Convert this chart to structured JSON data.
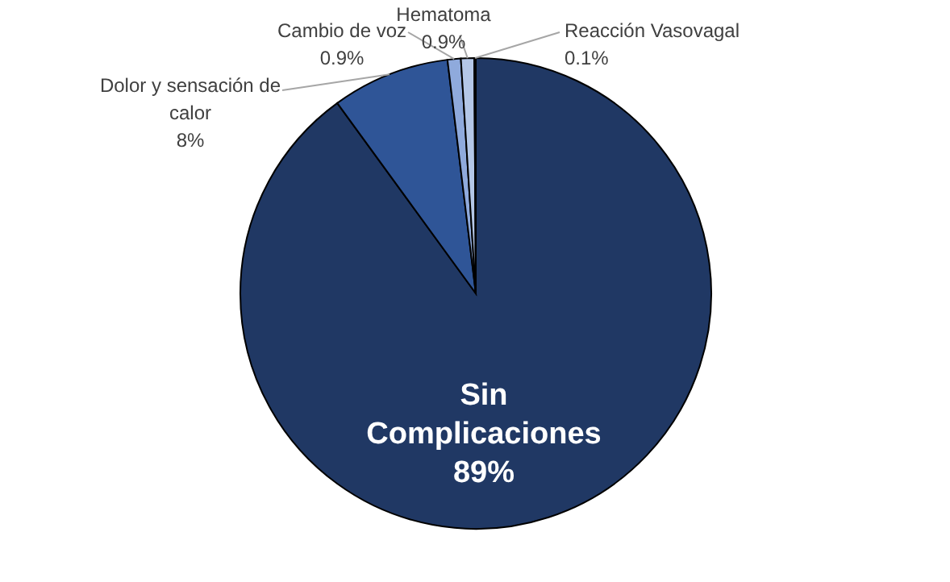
{
  "chart_data": {
    "type": "pie",
    "categories": [
      "Sin Complicaciones",
      "Dolor y sensación de calor",
      "Cambio de voz",
      "Hematoma",
      "Reacción Vasovagal"
    ],
    "values": [
      89,
      8,
      0.9,
      0.9,
      0.1
    ],
    "value_labels": [
      "89%",
      "8%",
      "0.9%",
      "0.9%",
      "0.1%"
    ],
    "colors": [
      "#203864",
      "#2f5597",
      "#8faadc",
      "#b4c7e7",
      "#dae3f3"
    ]
  }
}
